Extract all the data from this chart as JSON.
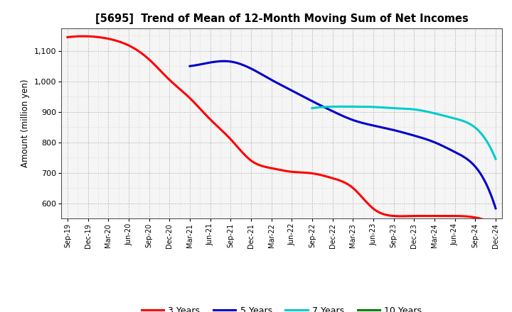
{
  "title": "[5695]  Trend of Mean of 12-Month Moving Sum of Net Incomes",
  "ylabel": "Amount (million yen)",
  "ylim": [
    550,
    1175
  ],
  "yticks": [
    600,
    700,
    800,
    900,
    1000,
    1100
  ],
  "ytick_labels": [
    "600",
    "700",
    "800",
    "900",
    "1,000",
    "1,100"
  ],
  "x_labels": [
    "Sep-19",
    "Dec-19",
    "Mar-20",
    "Jun-20",
    "Sep-20",
    "Dec-20",
    "Mar-21",
    "Jun-21",
    "Sep-21",
    "Dec-21",
    "Mar-22",
    "Jun-22",
    "Sep-22",
    "Dec-22",
    "Mar-23",
    "Jun-23",
    "Sep-23",
    "Dec-23",
    "Mar-24",
    "Jun-24",
    "Sep-24",
    "Dec-24"
  ],
  "colors": {
    "3yr": "#ff0000",
    "5yr": "#0000cc",
    "7yr": "#00cccc",
    "10yr": "#008000"
  },
  "legend": [
    "3 Years",
    "5 Years",
    "7 Years",
    "10 Years"
  ],
  "series_3yr": [
    1145,
    1148,
    1140,
    1118,
    1072,
    1005,
    945,
    875,
    810,
    740,
    715,
    703,
    698,
    682,
    650,
    582,
    558,
    558,
    558,
    558,
    553,
    528
  ],
  "series_5yr": [
    null,
    null,
    null,
    null,
    null,
    null,
    1050,
    1062,
    1065,
    1042,
    1005,
    970,
    935,
    902,
    873,
    855,
    840,
    822,
    800,
    768,
    720,
    583
  ],
  "series_7yr": [
    null,
    null,
    null,
    null,
    null,
    null,
    null,
    null,
    null,
    null,
    null,
    null,
    912,
    917,
    917,
    916,
    912,
    908,
    895,
    878,
    848,
    745
  ],
  "series_10yr": [
    null,
    null,
    null,
    null,
    null,
    null,
    null,
    null,
    null,
    null,
    null,
    null,
    null,
    null,
    null,
    null,
    null,
    null,
    null,
    null,
    null,
    null
  ],
  "background_color": "#ffffff",
  "plot_bg_color": "#f5f5f5",
  "grid_color": "#999999"
}
